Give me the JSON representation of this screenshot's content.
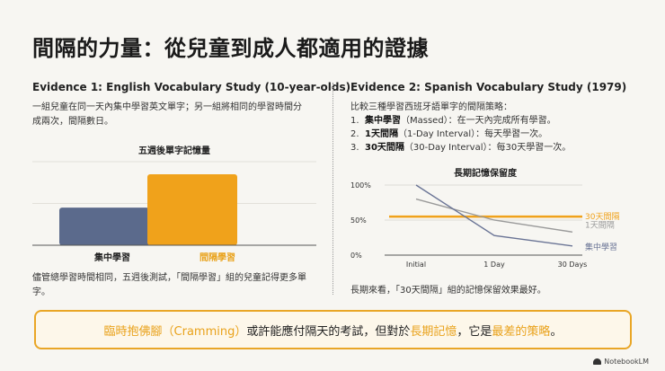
{
  "title": "間隔的力量：從兒童到成人都適用的證據",
  "evidence1": {
    "heading": "Evidence 1: English Vocabulary Study (10-year-olds)",
    "description": "一組兒童在同一天內集中學習英文單字；另一組將相同的學習時間分成兩次，間隔數日。",
    "chart_title": "五週後單字記憶量",
    "conclusion": "儘管總學習時間相同，五週後測試，「間隔學習」組的兒童記得更多單字。"
  },
  "evidence2": {
    "heading": "Evidence 2: Spanish Vocabulary Study (1979)",
    "intro": "比較三種學習西班牙語單字的間隔策略：",
    "strategies": [
      {
        "num": "1.",
        "name": "集中學習",
        "detail": "（Massed）：在一天內完成所有學習。"
      },
      {
        "num": "2.",
        "name": "1天間隔",
        "detail": "（1-Day Interval）：每天學習一次。"
      },
      {
        "num": "3.",
        "name": "30天間隔",
        "detail": "（30-Day Interval）：每30天學習一次。"
      }
    ],
    "chart_title": "長期記憶保留度",
    "conclusion": "長期來看，「30天間隔」組的記憶保留效果最好。"
  },
  "banner": {
    "part1": "臨時抱佛腳（Cramming）",
    "part2": "或許能應付隔天的考試，但對於",
    "part3": "長期記憶",
    "part4": "，它是",
    "part5": "最差的策略",
    "part6": "。"
  },
  "footer": {
    "brand": "NotebookLM"
  },
  "colors": {
    "accent": "#e9a21b",
    "navy": "#5b6a8c",
    "gray": "#9a9a9a",
    "background": "#f7f6f2"
  },
  "chart_data": [
    {
      "type": "bar",
      "title": "五週後單字記憶量",
      "categories": [
        "集中學習",
        "間隔學習"
      ],
      "values": [
        45,
        85
      ],
      "ylim": [
        0,
        100
      ],
      "grid": true,
      "colors": [
        "#5b6a8c",
        "#f0a21b"
      ]
    },
    {
      "type": "line",
      "title": "長期記憶保留度",
      "x": [
        "Initial",
        "1 Day",
        "30 Days"
      ],
      "yticks": [
        "0%",
        "50%",
        "100%"
      ],
      "ylim": [
        0,
        100
      ],
      "grid": true,
      "series": [
        {
          "name": "30天間隔",
          "values": [
            55,
            55,
            55
          ],
          "color": "#f0a21b"
        },
        {
          "name": "1天間隔",
          "values": [
            80,
            50,
            33
          ],
          "color": "#9a9a9a"
        },
        {
          "name": "集中學習",
          "values": [
            100,
            28,
            13
          ],
          "color": "#6a7495"
        }
      ]
    }
  ]
}
